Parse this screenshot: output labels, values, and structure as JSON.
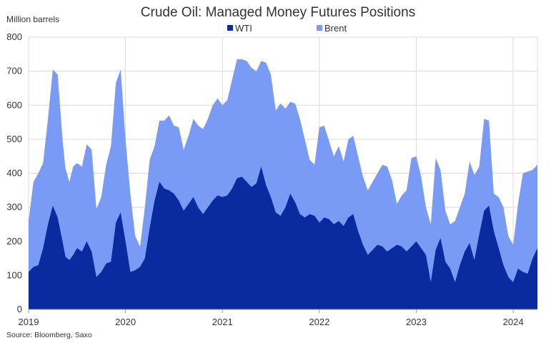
{
  "chart_data": {
    "type": "area",
    "title": "Crude Oil: Managed Money Futures Positions",
    "ylabel": "Million barrels",
    "source": "Source: Bloomberg, Saxo",
    "ylim": [
      0,
      800
    ],
    "yticks": [
      0,
      100,
      200,
      300,
      400,
      500,
      600,
      700,
      800
    ],
    "xlim": [
      2019.0,
      2024.25
    ],
    "xticks": [
      2019,
      2020,
      2021,
      2022,
      2023,
      2024
    ],
    "xtick_labels": [
      "2019",
      "2020",
      "2021",
      "2022",
      "2023",
      "2024"
    ],
    "grid": true,
    "legend_position": "top-center",
    "stacked": true,
    "x": [
      2019.0,
      2019.05,
      2019.1,
      2019.15,
      2019.2,
      2019.25,
      2019.3,
      2019.35,
      2019.38,
      2019.42,
      2019.46,
      2019.5,
      2019.55,
      2019.6,
      2019.65,
      2019.7,
      2019.75,
      2019.8,
      2019.85,
      2019.9,
      2019.95,
      2020.0,
      2020.05,
      2020.1,
      2020.15,
      2020.2,
      2020.25,
      2020.3,
      2020.35,
      2020.4,
      2020.45,
      2020.5,
      2020.55,
      2020.6,
      2020.65,
      2020.7,
      2020.75,
      2020.8,
      2020.85,
      2020.9,
      2020.95,
      2021.0,
      2021.05,
      2021.1,
      2021.15,
      2021.2,
      2021.25,
      2021.3,
      2021.35,
      2021.4,
      2021.45,
      2021.5,
      2021.55,
      2021.6,
      2021.65,
      2021.7,
      2021.75,
      2021.8,
      2021.85,
      2021.9,
      2021.95,
      2022.0,
      2022.05,
      2022.1,
      2022.15,
      2022.2,
      2022.25,
      2022.3,
      2022.35,
      2022.4,
      2022.45,
      2022.5,
      2022.55,
      2022.6,
      2022.65,
      2022.7,
      2022.75,
      2022.8,
      2022.85,
      2022.9,
      2022.95,
      2023.0,
      2023.05,
      2023.1,
      2023.15,
      2023.2,
      2023.25,
      2023.3,
      2023.35,
      2023.4,
      2023.45,
      2023.5,
      2023.55,
      2023.6,
      2023.65,
      2023.7,
      2023.75,
      2023.8,
      2023.85,
      2023.9,
      2023.95,
      2024.0,
      2024.05,
      2024.1,
      2024.15,
      2024.2,
      2024.25
    ],
    "series": [
      {
        "name": "WTI",
        "color": "#0a2aa0",
        "values": [
          110,
          125,
          130,
          180,
          250,
          305,
          270,
          200,
          155,
          145,
          160,
          180,
          170,
          200,
          170,
          95,
          110,
          135,
          140,
          255,
          285,
          200,
          110,
          115,
          125,
          150,
          240,
          320,
          375,
          355,
          350,
          340,
          320,
          290,
          310,
          330,
          300,
          280,
          300,
          320,
          335,
          330,
          335,
          355,
          385,
          390,
          375,
          360,
          370,
          420,
          365,
          330,
          285,
          275,
          300,
          340,
          315,
          280,
          270,
          280,
          275,
          255,
          270,
          265,
          250,
          260,
          245,
          270,
          280,
          230,
          190,
          160,
          175,
          190,
          185,
          170,
          180,
          190,
          185,
          170,
          185,
          200,
          180,
          160,
          80,
          175,
          210,
          140,
          120,
          80,
          130,
          170,
          195,
          145,
          220,
          290,
          305,
          230,
          180,
          130,
          95,
          80,
          120,
          110,
          105,
          150,
          180
        ]
      },
      {
        "name": "Brent",
        "color": "#7a9bf5",
        "values": [
          150,
          250,
          270,
          250,
          310,
          400,
          420,
          300,
          260,
          230,
          260,
          250,
          250,
          285,
          300,
          200,
          220,
          290,
          340,
          410,
          420,
          300,
          230,
          100,
          60,
          150,
          200,
          160,
          180,
          200,
          220,
          200,
          215,
          180,
          200,
          230,
          240,
          250,
          260,
          280,
          285,
          270,
          280,
          320,
          350,
          345,
          355,
          350,
          330,
          310,
          360,
          360,
          300,
          330,
          290,
          270,
          290,
          280,
          230,
          160,
          150,
          280,
          270,
          230,
          200,
          220,
          190,
          230,
          230,
          220,
          200,
          190,
          200,
          210,
          240,
          250,
          200,
          120,
          150,
          180,
          260,
          250,
          210,
          140,
          170,
          270,
          200,
          150,
          130,
          180,
          170,
          170,
          240,
          250,
          200,
          270,
          250,
          110,
          150,
          170,
          120,
          110,
          190,
          290,
          300,
          260,
          245
        ]
      }
    ]
  }
}
